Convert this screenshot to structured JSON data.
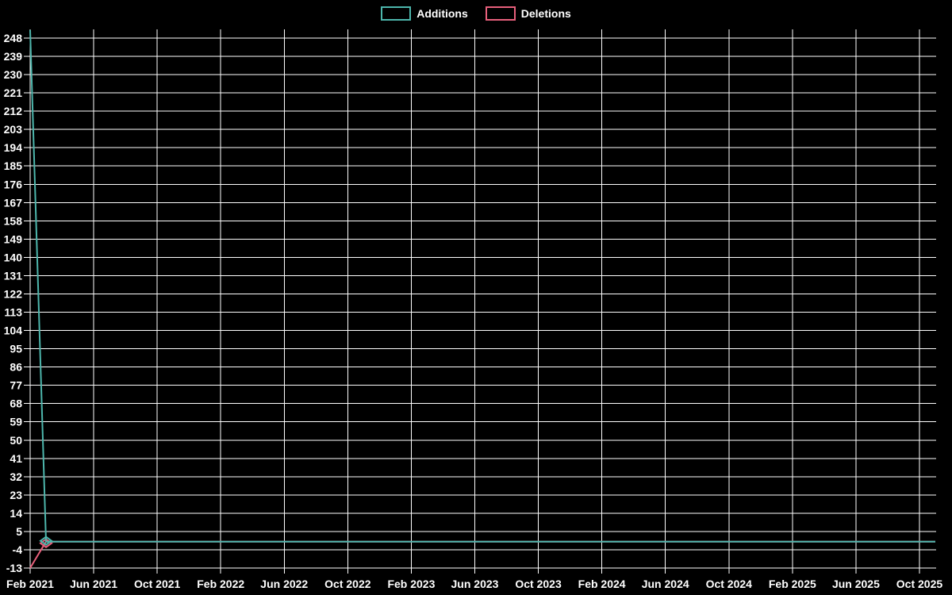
{
  "legend": {
    "additions_label": "Additions",
    "deletions_label": "Deletions"
  },
  "chart_data": {
    "type": "line",
    "title": "",
    "xlabel": "",
    "ylabel": "",
    "background_color": "#000000",
    "grid_color": "#ffffff",
    "text_color": "#ffffff",
    "legend_position": "top-center",
    "grid": true,
    "x_start_month": "Feb 2021",
    "x_end_month": "Nov 2025",
    "x_tick_every_n_months": 4,
    "x_tick_labels": [
      "Feb 2021",
      "Jun 2021",
      "Oct 2021",
      "Feb 2022",
      "Jun 2022",
      "Oct 2022",
      "Feb 2023",
      "Jun 2023",
      "Oct 2023",
      "Feb 2024",
      "Jun 2024",
      "Oct 2024",
      "Feb 2025",
      "Jun 2025",
      "Oct 2025"
    ],
    "y_ticks": [
      -13,
      -4,
      5,
      14,
      23,
      32,
      41,
      50,
      59,
      68,
      77,
      86,
      95,
      104,
      113,
      122,
      131,
      140,
      149,
      158,
      167,
      176,
      185,
      194,
      203,
      212,
      221,
      230,
      239,
      248
    ],
    "ylim": [
      -13,
      252
    ],
    "marker": {
      "shape": "diamond",
      "at_month_index": 1
    },
    "series": [
      {
        "name": "Additions",
        "color": "#4db6ac",
        "values": [
          252,
          0,
          0,
          0,
          0,
          0,
          0,
          0,
          0,
          0,
          0,
          0,
          0,
          0,
          0,
          0,
          0,
          0,
          0,
          0,
          0,
          0,
          0,
          0,
          0,
          0,
          0,
          0,
          0,
          0,
          0,
          0,
          0,
          0,
          0,
          0,
          0,
          0,
          0,
          0,
          0,
          0,
          0,
          0,
          0,
          0,
          0,
          0,
          0,
          0,
          0,
          0,
          0,
          0,
          0,
          0,
          0,
          0
        ]
      },
      {
        "name": "Deletions",
        "color": "#e8607c",
        "values": [
          -13,
          0,
          0,
          0,
          0,
          0,
          0,
          0,
          0,
          0,
          0,
          0,
          0,
          0,
          0,
          0,
          0,
          0,
          0,
          0,
          0,
          0,
          0,
          0,
          0,
          0,
          0,
          0,
          0,
          0,
          0,
          0,
          0,
          0,
          0,
          0,
          0,
          0,
          0,
          0,
          0,
          0,
          0,
          0,
          0,
          0,
          0,
          0,
          0,
          0,
          0,
          0,
          0,
          0,
          0,
          0,
          0,
          0
        ]
      }
    ]
  }
}
